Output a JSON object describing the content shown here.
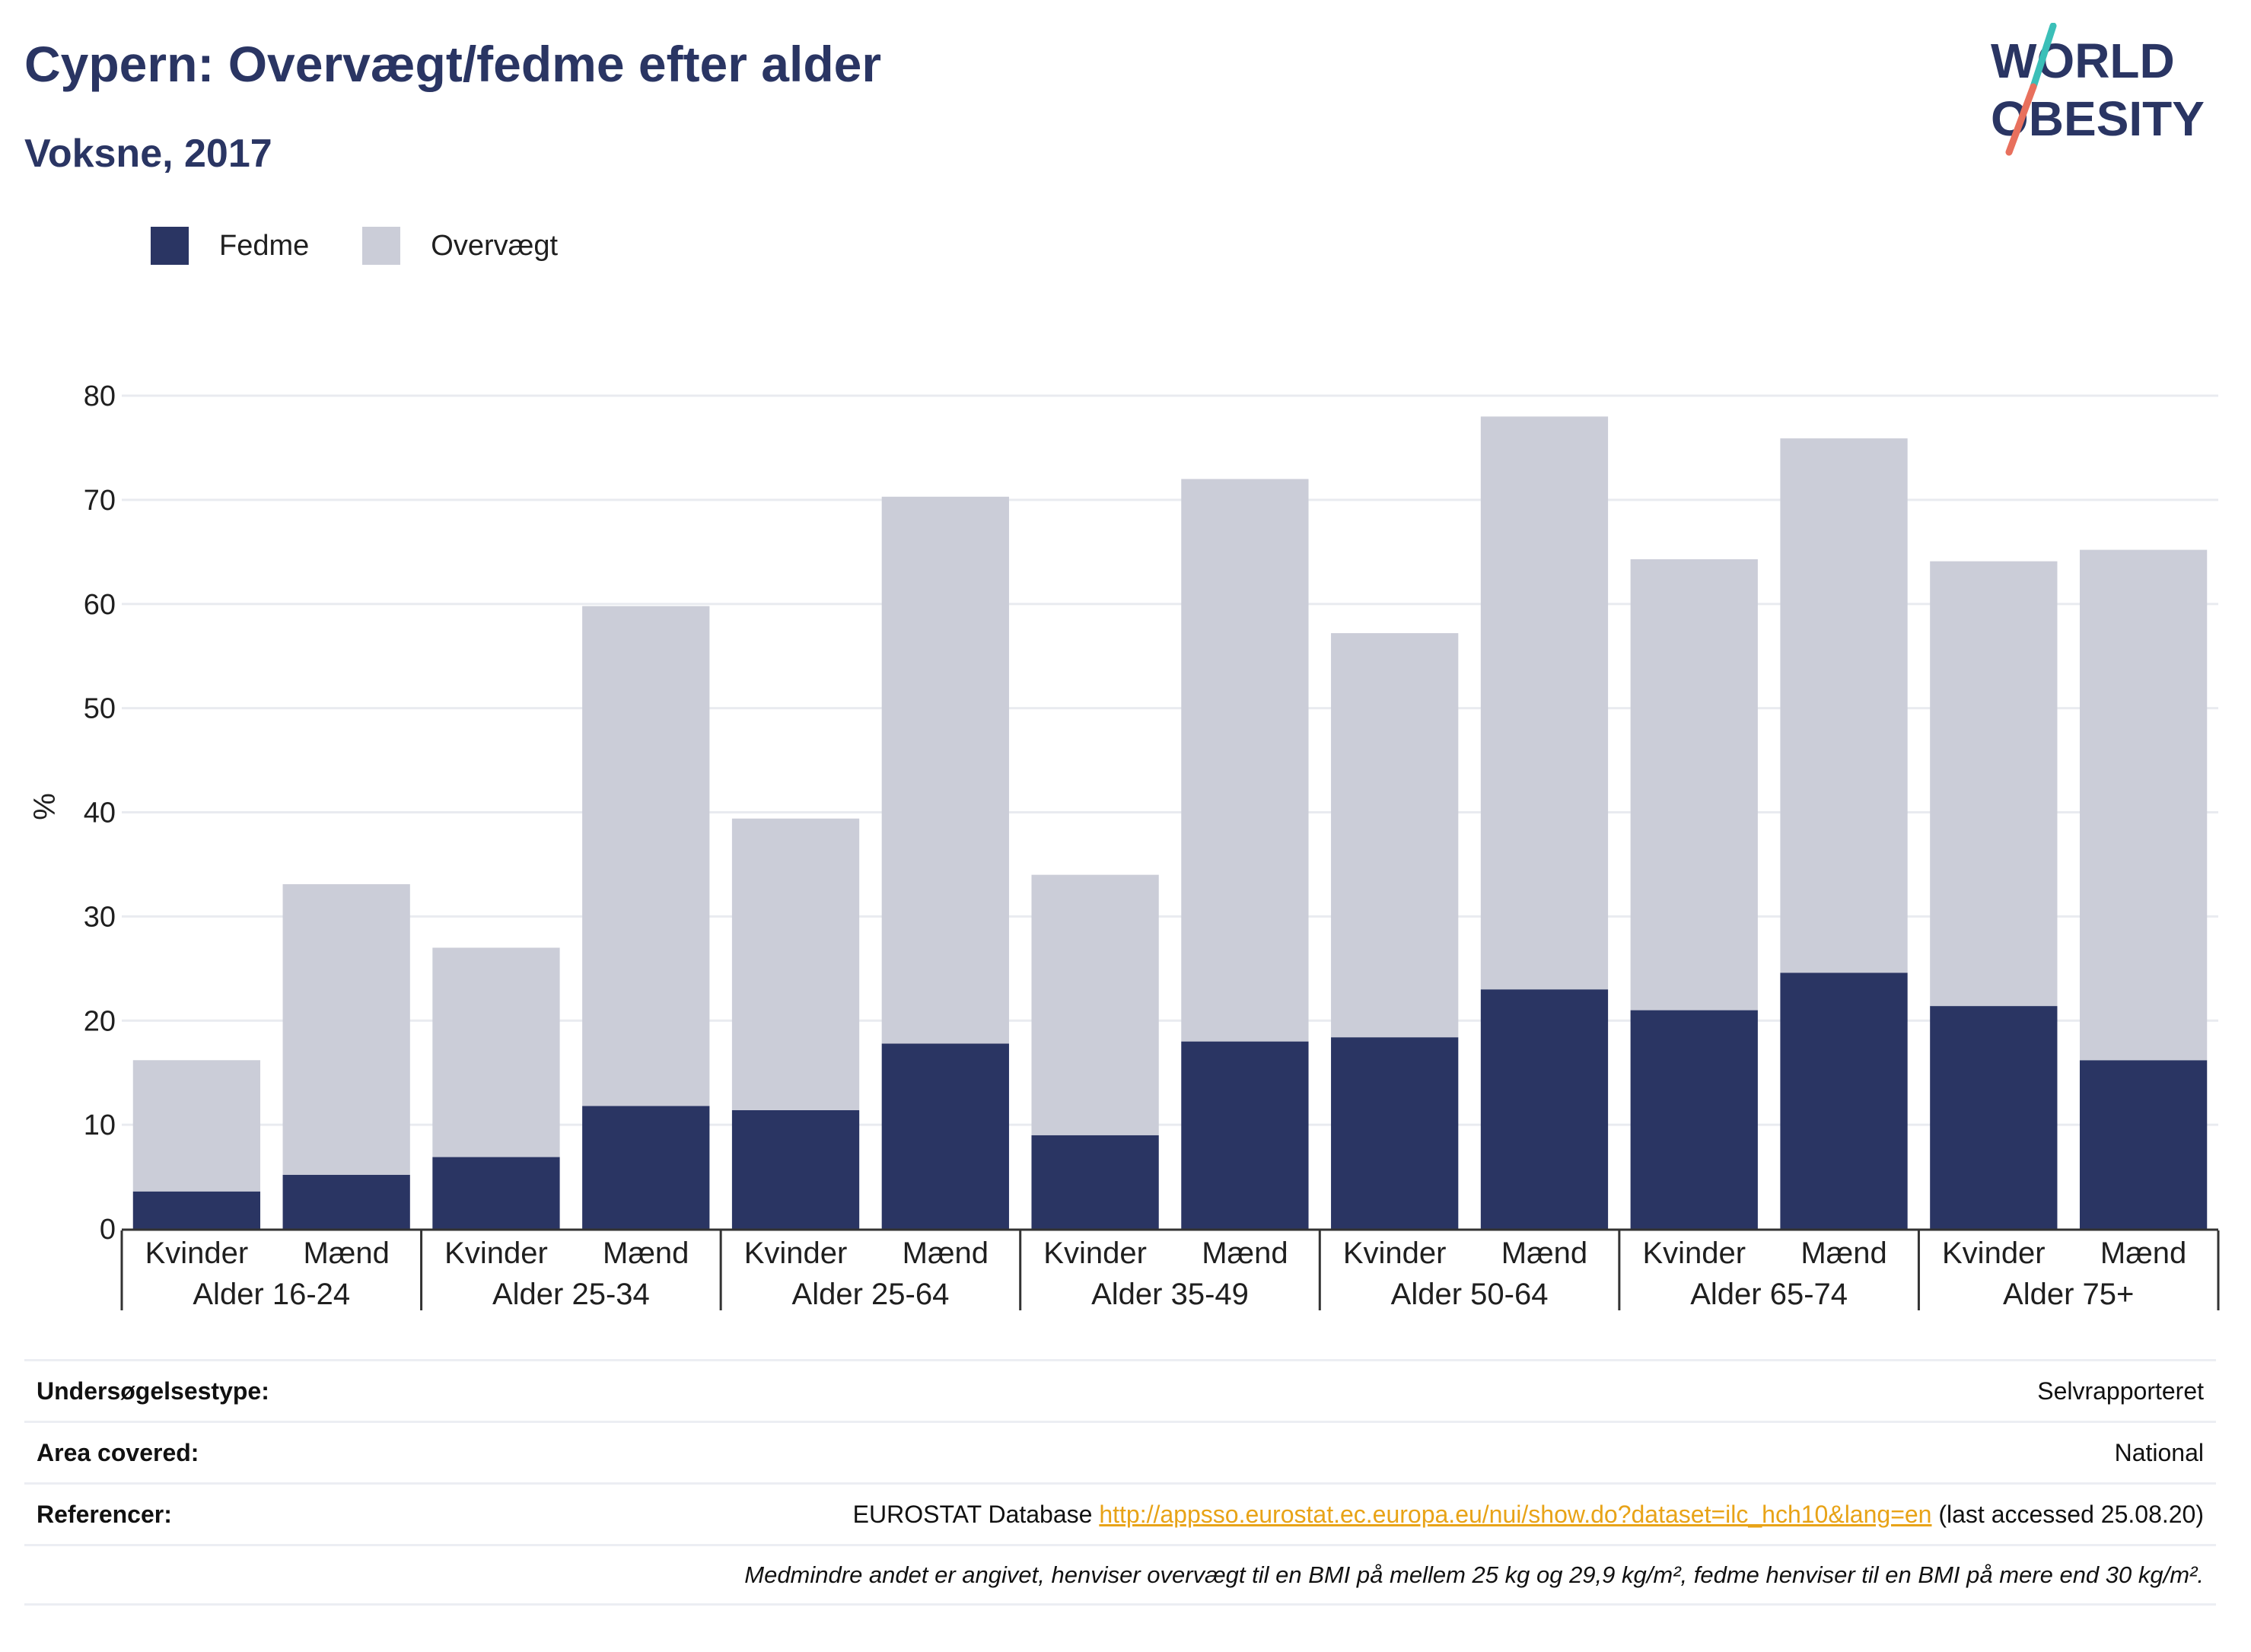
{
  "header": {
    "title": "Cypern: Overvægt/fedme efter alder",
    "subtitle": "Voksne, 2017"
  },
  "logo": {
    "line1": "WORLD",
    "line2": "OBESITY",
    "colors": {
      "text": "#2a3563",
      "slash_top": "#3bbfb8",
      "slash_bottom": "#e8705d"
    }
  },
  "colors": {
    "fedme": "#2a3563",
    "overvaegt": "#cbcdd8",
    "grid": "#e9ebf0",
    "axis": "#333333",
    "link": "#e8a317"
  },
  "legend": [
    {
      "label": "Fedme",
      "color": "#2a3563"
    },
    {
      "label": "Overvægt",
      "color": "#cbcdd8"
    }
  ],
  "chart_data": {
    "type": "bar",
    "stacked": true,
    "ylabel": "%",
    "ylim": [
      0,
      80
    ],
    "yticks": [
      0,
      10,
      20,
      30,
      40,
      50,
      60,
      70,
      80
    ],
    "grid": true,
    "legend_position": "top-left",
    "groups": [
      "Alder 16-24",
      "Alder 25-34",
      "Alder 25-64",
      "Alder 35-49",
      "Alder 50-64",
      "Alder 65-74",
      "Alder 75+"
    ],
    "categories": [
      "Kvinder",
      "Mænd",
      "Kvinder",
      "Mænd",
      "Kvinder",
      "Mænd",
      "Kvinder",
      "Mænd",
      "Kvinder",
      "Mænd",
      "Kvinder",
      "Mænd",
      "Kvinder",
      "Mænd"
    ],
    "series": [
      {
        "name": "Fedme",
        "values": [
          3.6,
          5.2,
          6.9,
          11.8,
          11.4,
          17.8,
          9.0,
          18.0,
          18.4,
          23.0,
          21.0,
          24.6,
          21.4,
          16.2
        ]
      },
      {
        "name": "Overvægt",
        "values": [
          12.6,
          27.9,
          20.1,
          48.0,
          28.0,
          52.5,
          25.0,
          54.0,
          38.8,
          55.0,
          43.3,
          51.3,
          42.7,
          49.0
        ]
      }
    ]
  },
  "info_table": [
    {
      "key": "Undersøgelsestype:",
      "value": "Selvrapporteret"
    },
    {
      "key": "Area covered:",
      "value": "National"
    },
    {
      "key": "Referencer:",
      "value_prefix": "EUROSTAT Database ",
      "link": "http://appsso.eurostat.ec.europa.eu/nui/show.do?dataset=ilc_hch10&lang=en",
      "value_suffix": " (last accessed 25.08.20)"
    }
  ],
  "note": "Medmindre andet er angivet, henviser overvægt til en BMI på mellem 25 kg og 29,9 kg/m², fedme henviser til en BMI på mere end 30 kg/m²."
}
